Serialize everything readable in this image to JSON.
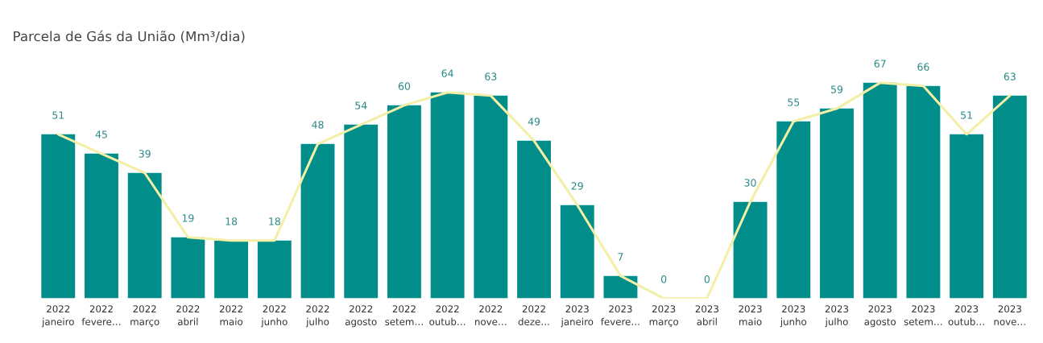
{
  "chart_data": {
    "type": "bar",
    "title": "Parcela de Gás da União (Mm³/dia)",
    "categories": [
      "2022\njaneiro",
      "2022\nfevere…",
      "2022\nmarço",
      "2022\nabril",
      "2022\nmaio",
      "2022\njunho",
      "2022\njulho",
      "2022\nagosto",
      "2022\nsetem…",
      "2022\noutub…",
      "2022\nnove…",
      "2022\ndeze…",
      "2023\njaneiro",
      "2023\nfevere…",
      "2023\nmarço",
      "2023\nabril",
      "2023\nmaio",
      "2023\njunho",
      "2023\njulho",
      "2023\nagosto",
      "2023\nsetem…",
      "2023\noutub…",
      "2023\nnove…"
    ],
    "series": [
      {
        "color": "#018d8a",
        "values": [
          51,
          45,
          39,
          19,
          18,
          18,
          48,
          54,
          60,
          64,
          63,
          49,
          29,
          7,
          0,
          0,
          30,
          55,
          59,
          67,
          66,
          51,
          63
        ],
        "value_labels": [
          "51",
          "45",
          "39",
          "19",
          "18",
          "18",
          "48",
          "54",
          "60",
          "64",
          "63",
          "49",
          "29",
          "7",
          "0",
          "0",
          "30",
          "55",
          "59",
          "67",
          "66",
          "51",
          "63"
        ]
      },
      {
        "type": "line",
        "color": "#f3efa6",
        "values": [
          51,
          45,
          39,
          19,
          18,
          18,
          48,
          54,
          60,
          64,
          63,
          49,
          29,
          7,
          0,
          0,
          30,
          55,
          59,
          67,
          66,
          51,
          63
        ]
      }
    ],
    "grid": false,
    "legend": false
  }
}
